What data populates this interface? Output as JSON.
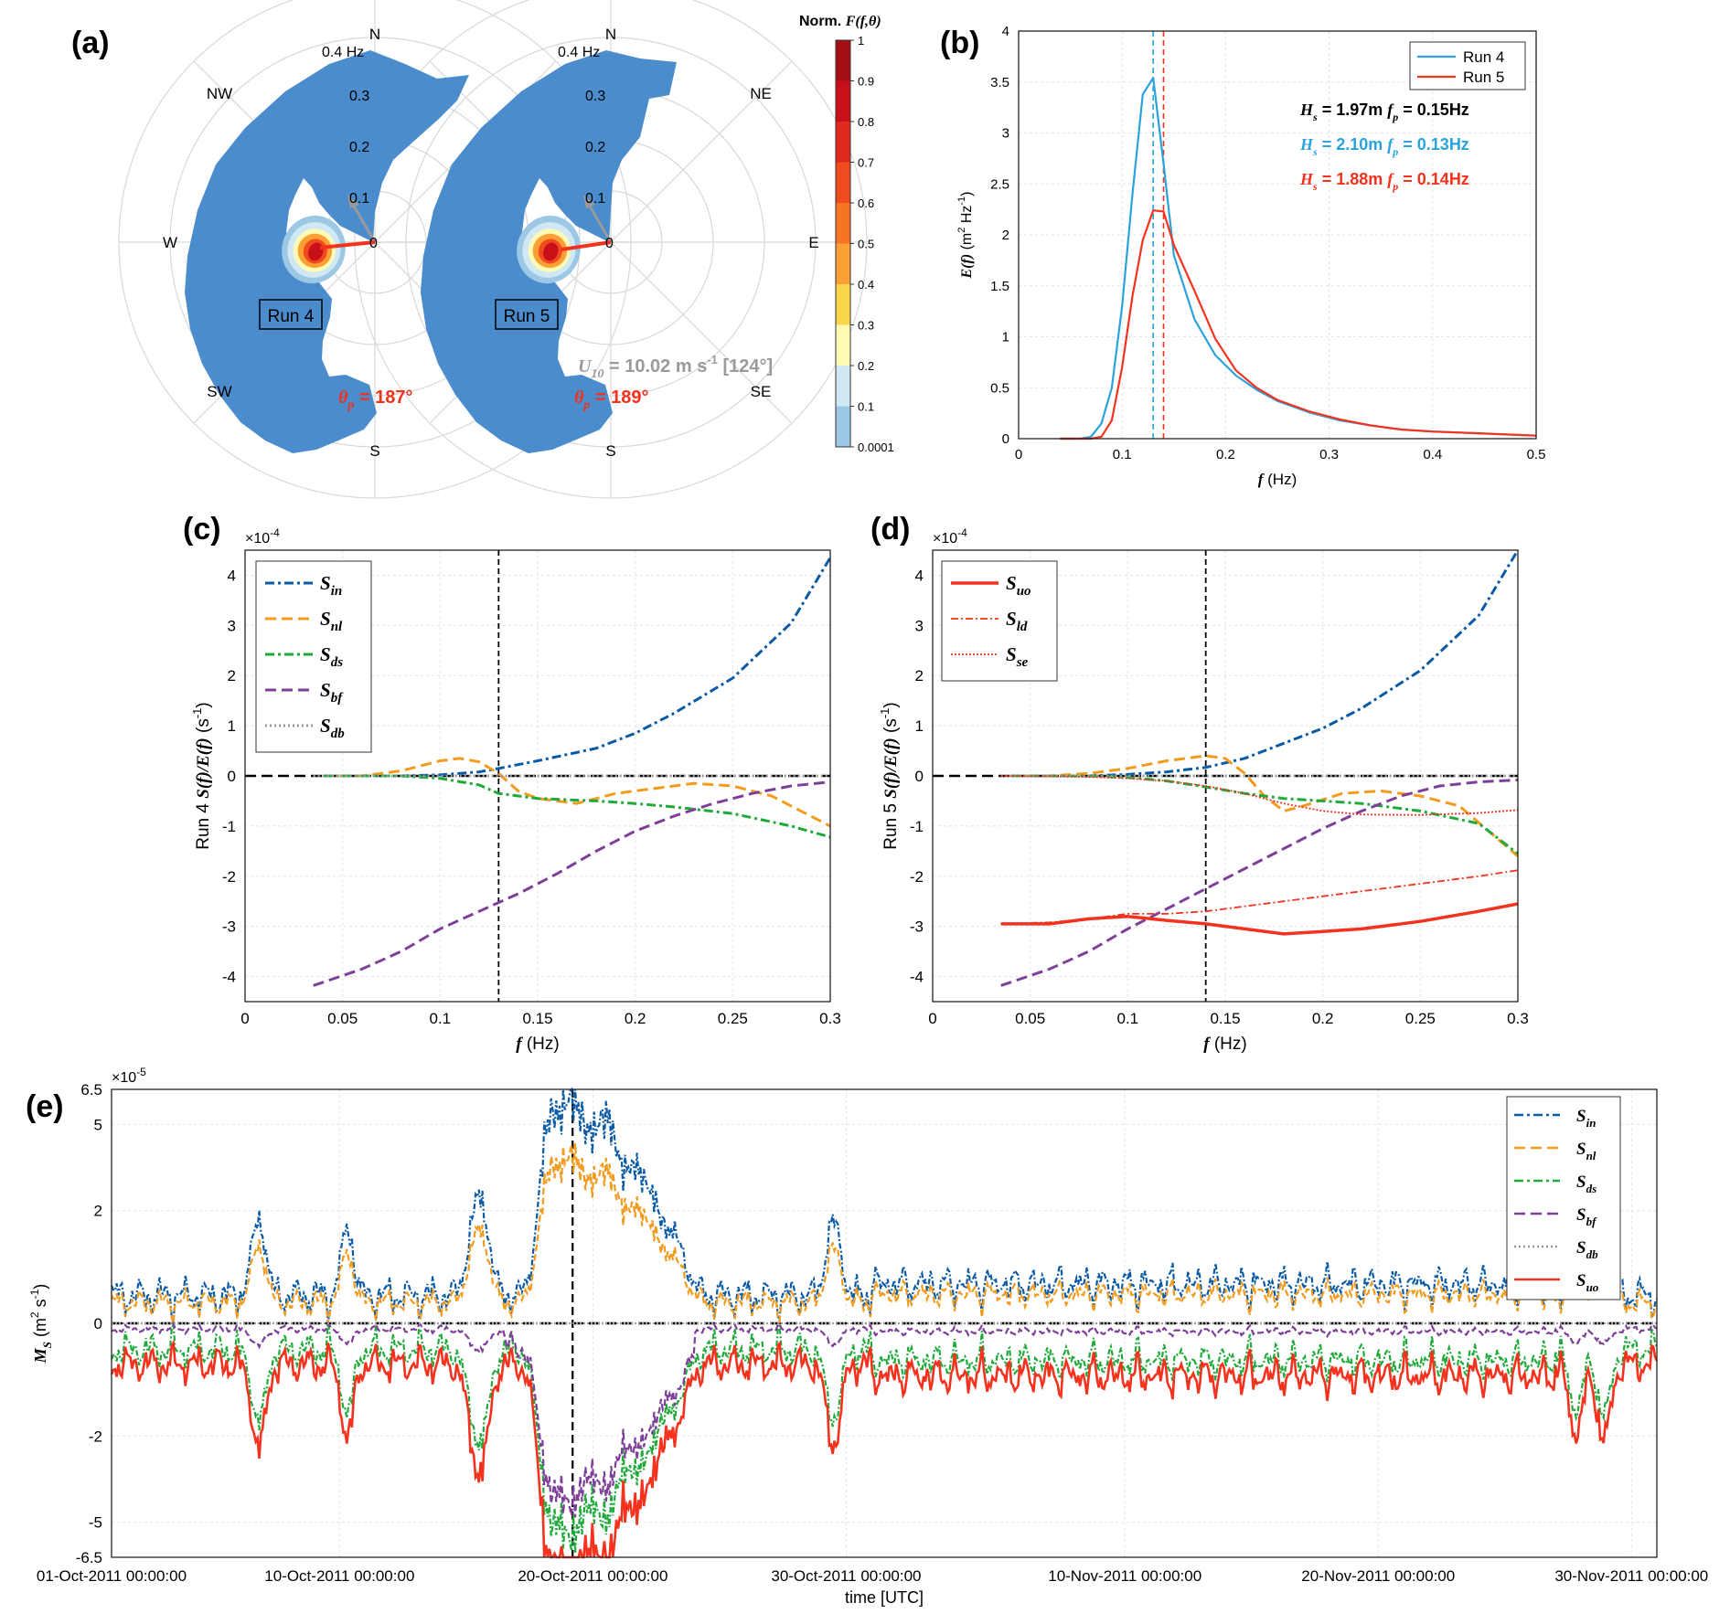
{
  "panel_labels": {
    "a": "(a)",
    "b": "(b)",
    "c": "(c)",
    "d": "(d)",
    "e": "(e)"
  },
  "colors": {
    "blue": "#0a5aa6",
    "orange": "#f29b1c",
    "green": "#1faa3a",
    "purple": "#7e3f98",
    "gray": "#9a9a9a",
    "red": "#f4321e",
    "lightblue": "#2aa3dc",
    "polar_fill": "#4a8ccc"
  },
  "panel_a": {
    "compass": [
      "N",
      "NE",
      "E",
      "SE",
      "S",
      "SW",
      "W",
      "NW"
    ],
    "ring_labels": [
      "0",
      "0.1",
      "0.2",
      "0.3",
      "0.4 Hz"
    ],
    "run4_label": "Run 4",
    "run5_label": "Run 5",
    "run4_theta_p_sym": "θ",
    "run4_theta_p_sub": "p",
    "run4_theta_p_val": " = 187°",
    "run5_theta_p_sym": "θ",
    "run5_theta_p_sub": "p",
    "run5_theta_p_val": " = 189°",
    "u10_sym": "U",
    "u10_sub": "10",
    "u10_val": " = 10.02 m s",
    "u10_sup": "-1",
    "u10_dir": " [124°]",
    "colorbar_title": "Norm.",
    "colorbar_func": "F(f,θ)",
    "colorbar_ticks": [
      "1",
      "0.9",
      "0.8",
      "0.7",
      "0.6",
      "0.5",
      "0.4",
      "0.3",
      "0.2",
      "0.1",
      "0.0001"
    ],
    "colorbar_colors": [
      "#a50f15",
      "#c8101a",
      "#e02a1e",
      "#f04b1f",
      "#f77424",
      "#fca035",
      "#fbd54a",
      "#fffbb4",
      "#d0e8f4",
      "#9cc8e6",
      "#4a8ccc"
    ]
  },
  "chart_data": [
    {
      "id": "b",
      "type": "line",
      "xlabel_sym": "f",
      "xlabel_unit": " (Hz)",
      "ylabel_sym": "E(f)",
      "ylabel_unit": "  (m",
      "ylabel_sup1": "2",
      "ylabel_mid": " Hz",
      "ylabel_sup2": "-1",
      "ylabel_end": ")",
      "xlim": [
        0,
        0.5
      ],
      "ylim": [
        0,
        4
      ],
      "xticks": [
        "0",
        "0.1",
        "0.2",
        "0.3",
        "0.4",
        "0.5"
      ],
      "yticks": [
        "0",
        "0.5",
        "1",
        "1.5",
        "2",
        "2.5",
        "3",
        "3.5",
        "4"
      ],
      "legend": [
        "Run 4",
        "Run 5"
      ],
      "annotations": [
        {
          "hs": "H",
          "hs_sub": "s",
          "hs_val": " = 1.97m",
          "fp": "f",
          "fp_sub": "p",
          "fp_val": " = 0.15Hz",
          "color": "#000000"
        },
        {
          "hs": "H",
          "hs_sub": "s",
          "hs_val": " = 2.10m",
          "fp": "f",
          "fp_sub": "p",
          "fp_val": " = 0.13Hz",
          "color": "#2aa3dc"
        },
        {
          "hs": "H",
          "hs_sub": "s",
          "hs_val": " = 1.88m",
          "fp": "f",
          "fp_sub": "p",
          "fp_val": " = 0.14Hz",
          "color": "#f4321e"
        }
      ],
      "vlines": [
        0.13,
        0.14
      ],
      "series": [
        {
          "name": "Run 4",
          "x": [
            0.04,
            0.06,
            0.07,
            0.08,
            0.09,
            0.1,
            0.11,
            0.12,
            0.13,
            0.14,
            0.15,
            0.17,
            0.19,
            0.21,
            0.23,
            0.25,
            0.28,
            0.31,
            0.34,
            0.37,
            0.4,
            0.45,
            0.5
          ],
          "y": [
            0,
            0,
            0.02,
            0.15,
            0.5,
            1.3,
            2.4,
            3.38,
            3.54,
            2.7,
            1.8,
            1.17,
            0.82,
            0.62,
            0.48,
            0.37,
            0.26,
            0.18,
            0.13,
            0.09,
            0.07,
            0.05,
            0.03
          ]
        },
        {
          "name": "Run 5",
          "x": [
            0.04,
            0.06,
            0.07,
            0.08,
            0.09,
            0.1,
            0.11,
            0.12,
            0.13,
            0.14,
            0.15,
            0.17,
            0.19,
            0.21,
            0.23,
            0.25,
            0.28,
            0.31,
            0.34,
            0.37,
            0.4,
            0.45,
            0.5
          ],
          "y": [
            0,
            0,
            0,
            0.02,
            0.18,
            0.7,
            1.4,
            1.95,
            2.24,
            2.23,
            1.9,
            1.45,
            0.98,
            0.67,
            0.5,
            0.38,
            0.27,
            0.19,
            0.13,
            0.09,
            0.07,
            0.05,
            0.03
          ]
        }
      ]
    },
    {
      "id": "c",
      "type": "line",
      "exponent_base": "×10",
      "exponent": "-4",
      "xlabel_sym": "f",
      "xlabel_unit": " (Hz)",
      "ylabel_run": "Run 4  ",
      "ylabel_sym": "S(f)/E(f)",
      "ylabel_unit": "  (s",
      "ylabel_sup": "-1",
      "ylabel_end": ")",
      "xlim": [
        0,
        0.3
      ],
      "ylim": [
        -4.5,
        4.5
      ],
      "xticks": [
        "0",
        "0.05",
        "0.1",
        "0.15",
        "0.2",
        "0.25",
        "0.3"
      ],
      "yticks": [
        "-4",
        "-3",
        "-2",
        "-1",
        "0",
        "1",
        "2",
        "3",
        "4"
      ],
      "vline": 0.13,
      "series": [
        {
          "name": "in",
          "x": [
            0.04,
            0.08,
            0.1,
            0.12,
            0.13,
            0.15,
            0.18,
            0.2,
            0.22,
            0.25,
            0.28,
            0.3
          ],
          "y": [
            0,
            0,
            0.02,
            0.08,
            0.15,
            0.3,
            0.55,
            0.85,
            1.25,
            1.95,
            3.05,
            4.35
          ]
        },
        {
          "name": "nl",
          "x": [
            0.04,
            0.06,
            0.08,
            0.1,
            0.11,
            0.12,
            0.13,
            0.14,
            0.15,
            0.17,
            0.19,
            0.21,
            0.23,
            0.25,
            0.27,
            0.3
          ],
          "y": [
            0,
            0,
            0.1,
            0.3,
            0.35,
            0.28,
            0.05,
            -0.3,
            -0.45,
            -0.55,
            -0.35,
            -0.25,
            -0.15,
            -0.2,
            -0.4,
            -1.0
          ]
        },
        {
          "name": "ds",
          "x": [
            0.04,
            0.08,
            0.1,
            0.12,
            0.13,
            0.15,
            0.18,
            0.2,
            0.22,
            0.25,
            0.28,
            0.3
          ],
          "y": [
            0,
            0,
            -0.05,
            -0.18,
            -0.35,
            -0.45,
            -0.5,
            -0.55,
            -0.62,
            -0.75,
            -1.0,
            -1.22
          ]
        },
        {
          "name": "bf",
          "x": [
            0.035,
            0.06,
            0.08,
            0.1,
            0.12,
            0.14,
            0.16,
            0.18,
            0.2,
            0.22,
            0.24,
            0.26,
            0.28,
            0.3
          ],
          "y": [
            -4.18,
            -3.85,
            -3.5,
            -3.05,
            -2.7,
            -2.35,
            -1.95,
            -1.5,
            -1.1,
            -0.8,
            -0.55,
            -0.35,
            -0.2,
            -0.12
          ]
        },
        {
          "name": "db",
          "x": [
            0.035,
            0.3
          ],
          "y": [
            0,
            0
          ]
        }
      ],
      "legend": [
        {
          "s": "S",
          "sub": "in"
        },
        {
          "s": "S",
          "sub": "nl"
        },
        {
          "s": "S",
          "sub": "ds"
        },
        {
          "s": "S",
          "sub": "bf"
        },
        {
          "s": "S",
          "sub": "db"
        }
      ]
    },
    {
      "id": "d",
      "type": "line",
      "exponent_base": "×10",
      "exponent": "-4",
      "xlabel_sym": "f",
      "xlabel_unit": " (Hz)",
      "ylabel_run": "Run 5  ",
      "ylabel_sym": "S(f)/E(f)",
      "ylabel_unit": "  (s",
      "ylabel_sup": "-1",
      "ylabel_end": ")",
      "xlim": [
        0,
        0.3
      ],
      "ylim": [
        -4.5,
        4.5
      ],
      "xticks": [
        "0",
        "0.05",
        "0.1",
        "0.15",
        "0.2",
        "0.25",
        "0.3"
      ],
      "yticks": [
        "-4",
        "-3",
        "-2",
        "-1",
        "0",
        "1",
        "2",
        "3",
        "4"
      ],
      "vline": 0.14,
      "series": [
        {
          "name": "in",
          "x": [
            0.04,
            0.08,
            0.1,
            0.12,
            0.14,
            0.16,
            0.18,
            0.2,
            0.22,
            0.25,
            0.28,
            0.3
          ],
          "y": [
            0,
            0,
            0.03,
            0.08,
            0.17,
            0.35,
            0.65,
            0.95,
            1.35,
            2.1,
            3.2,
            4.5
          ]
        },
        {
          "name": "nl",
          "x": [
            0.04,
            0.06,
            0.08,
            0.1,
            0.12,
            0.14,
            0.15,
            0.16,
            0.17,
            0.18,
            0.19,
            0.21,
            0.23,
            0.25,
            0.27,
            0.3
          ],
          "y": [
            0,
            0,
            0.05,
            0.15,
            0.3,
            0.4,
            0.35,
            0.05,
            -0.4,
            -0.7,
            -0.6,
            -0.35,
            -0.3,
            -0.4,
            -0.6,
            -1.6
          ]
        },
        {
          "name": "ds",
          "x": [
            0.04,
            0.08,
            0.1,
            0.12,
            0.14,
            0.16,
            0.18,
            0.2,
            0.22,
            0.25,
            0.28,
            0.3
          ],
          "y": [
            0,
            0,
            -0.03,
            -0.1,
            -0.22,
            -0.35,
            -0.45,
            -0.5,
            -0.55,
            -0.7,
            -0.95,
            -1.55
          ]
        },
        {
          "name": "bf",
          "x": [
            0.035,
            0.06,
            0.08,
            0.1,
            0.12,
            0.14,
            0.16,
            0.18,
            0.2,
            0.22,
            0.24,
            0.26,
            0.28,
            0.3
          ],
          "y": [
            -4.18,
            -3.85,
            -3.5,
            -3.05,
            -2.65,
            -2.25,
            -1.85,
            -1.45,
            -1.05,
            -0.7,
            -0.4,
            -0.2,
            -0.12,
            -0.08
          ]
        },
        {
          "name": "db",
          "x": [
            0.035,
            0.3
          ],
          "y": [
            0,
            0
          ]
        },
        {
          "name": "uo",
          "x": [
            0.035,
            0.06,
            0.08,
            0.1,
            0.12,
            0.14,
            0.16,
            0.18,
            0.2,
            0.22,
            0.25,
            0.28,
            0.3
          ],
          "y": [
            -2.95,
            -2.95,
            -2.85,
            -2.8,
            -2.88,
            -2.95,
            -3.05,
            -3.15,
            -3.1,
            -3.05,
            -2.9,
            -2.7,
            -2.55
          ]
        },
        {
          "name": "ld",
          "x": [
            0.035,
            0.06,
            0.08,
            0.1,
            0.12,
            0.14,
            0.16,
            0.18,
            0.2,
            0.22,
            0.25,
            0.28,
            0.3
          ],
          "y": [
            -2.95,
            -2.92,
            -2.85,
            -2.75,
            -2.75,
            -2.7,
            -2.6,
            -2.5,
            -2.4,
            -2.3,
            -2.15,
            -2.0,
            -1.88
          ]
        },
        {
          "name": "se",
          "x": [
            0.035,
            0.08,
            0.1,
            0.12,
            0.14,
            0.16,
            0.18,
            0.2,
            0.22,
            0.25,
            0.28,
            0.3
          ],
          "y": [
            0,
            -0.02,
            -0.05,
            -0.1,
            -0.2,
            -0.35,
            -0.55,
            -0.7,
            -0.77,
            -0.78,
            -0.74,
            -0.68
          ]
        }
      ],
      "legend": [
        {
          "s": "S",
          "sub": "uo"
        },
        {
          "s": "S",
          "sub": "ld"
        },
        {
          "s": "S",
          "sub": "se"
        }
      ]
    },
    {
      "id": "e",
      "type": "line",
      "exponent_base": "×10",
      "exponent": "-5",
      "xlabel": "time [UTC]",
      "ylabel_sym": "M",
      "ylabel_sub": "S",
      "ylabel_unit": " (m",
      "ylabel_sup1": "2",
      "ylabel_mid": " s",
      "ylabel_sup2": "-1",
      "ylabel_end": ")",
      "xlim": [
        0,
        61
      ],
      "ylim": [
        -6.5,
        6.5
      ],
      "xticks": [
        "01-Oct-2011 00:00:00",
        "10-Oct-2011 00:00:00",
        "20-Oct-2011 00:00:00",
        "30-Oct-2011 00:00:00",
        "10-Nov-2011 00:00:00",
        "20-Nov-2011 00:00:00",
        "30-Nov-2011 00:00:00"
      ],
      "xtick_days": [
        0,
        9,
        19,
        29,
        40,
        50,
        60
      ],
      "yticks": [
        "-6.5",
        "-5",
        "-2",
        "0",
        "2",
        "5",
        "6.5"
      ],
      "vline": 18.2,
      "events": [
        {
          "day": 5.8,
          "w": 0.35,
          "a": 1.5
        },
        {
          "day": 9.3,
          "w": 0.3,
          "a": 1.3
        },
        {
          "day": 14.5,
          "w": 0.45,
          "a": 2.2
        },
        {
          "day": 17.3,
          "w": 0.5,
          "a": 4.6
        },
        {
          "day": 18.2,
          "w": 0.6,
          "a": 5.6
        },
        {
          "day": 19.4,
          "w": 0.7,
          "a": 4.8
        },
        {
          "day": 20.8,
          "w": 0.9,
          "a": 3.0
        },
        {
          "day": 22.2,
          "w": 0.6,
          "a": 0.9
        },
        {
          "day": 28.5,
          "w": 0.35,
          "a": 1.5
        },
        {
          "day": 57.8,
          "w": 0.35,
          "a": 1.2
        },
        {
          "day": 58.9,
          "w": 0.35,
          "a": 1.3
        }
      ],
      "legend": [
        {
          "s": "S",
          "sub": "in"
        },
        {
          "s": "S",
          "sub": "nl"
        },
        {
          "s": "S",
          "sub": "ds"
        },
        {
          "s": "S",
          "sub": "bf"
        },
        {
          "s": "S",
          "sub": "db"
        },
        {
          "s": "S",
          "sub": "uo"
        }
      ]
    }
  ]
}
